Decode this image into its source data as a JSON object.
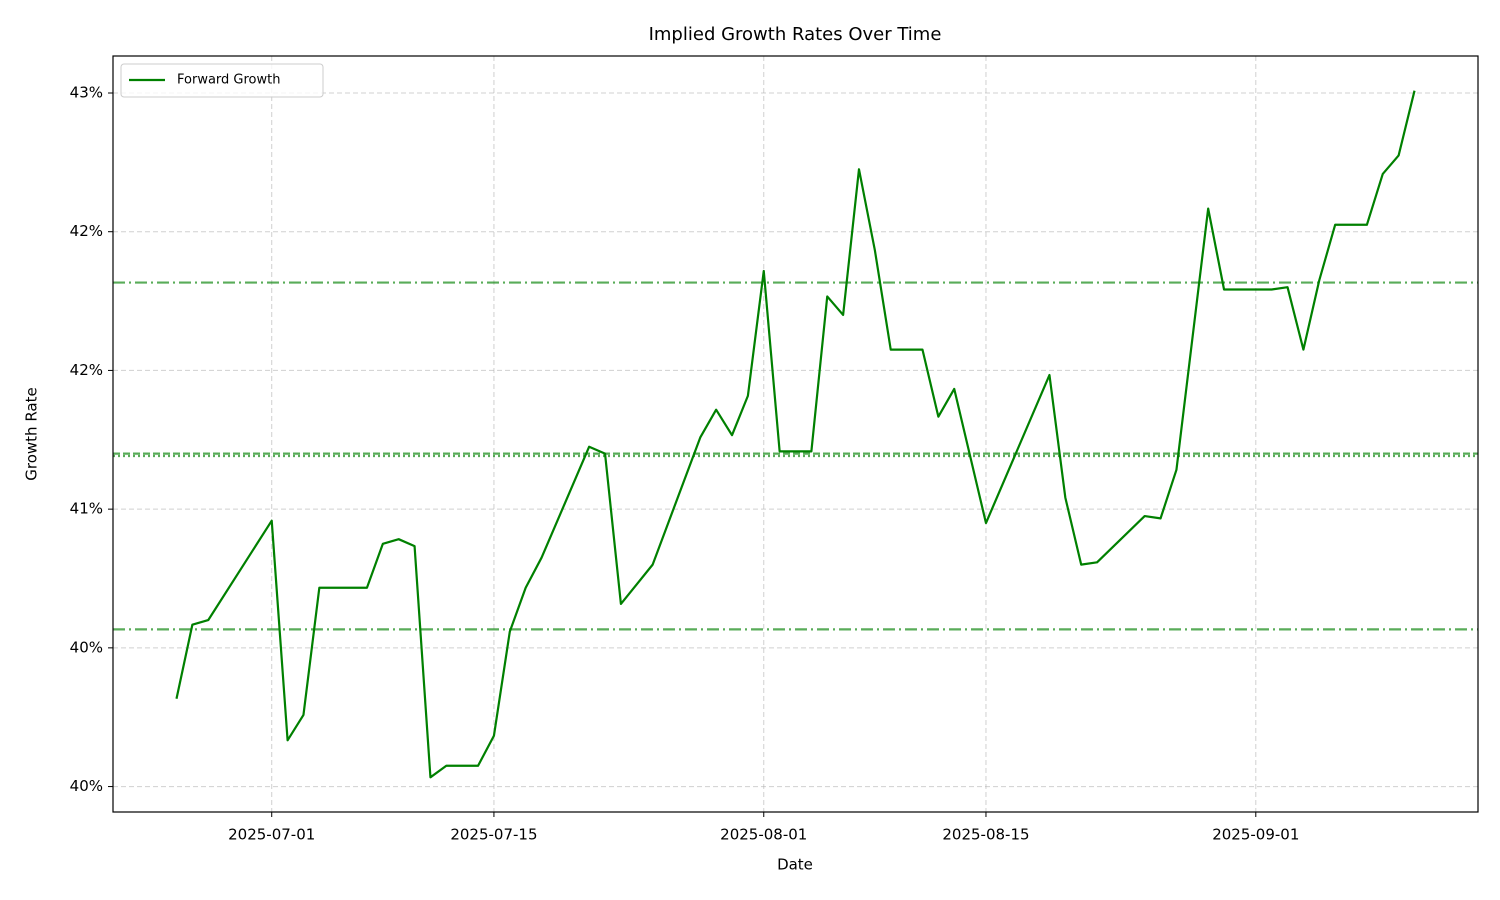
{
  "chart_data": {
    "type": "line",
    "title": "Implied Growth Rates Over Time",
    "x_label": "Date",
    "y_label": "Growth Rate",
    "x": [
      "2025-06-25",
      "2025-06-26",
      "2025-06-27",
      "2025-07-01",
      "2025-07-02",
      "2025-07-03",
      "2025-07-04",
      "2025-07-07",
      "2025-07-08",
      "2025-07-09",
      "2025-07-10",
      "2025-07-11",
      "2025-07-12",
      "2025-07-14",
      "2025-07-15",
      "2025-07-16",
      "2025-07-17",
      "2025-07-18",
      "2025-07-21",
      "2025-07-22",
      "2025-07-23",
      "2025-07-25",
      "2025-07-28",
      "2025-07-29",
      "2025-07-30",
      "2025-07-31",
      "2025-08-01",
      "2025-08-02",
      "2025-08-04",
      "2025-08-05",
      "2025-08-06",
      "2025-08-07",
      "2025-08-08",
      "2025-08-09",
      "2025-08-11",
      "2025-08-12",
      "2025-08-13",
      "2025-08-15",
      "2025-08-19",
      "2025-08-20",
      "2025-08-21",
      "2025-08-22",
      "2025-08-25",
      "2025-08-26",
      "2025-08-27",
      "2025-08-29",
      "2025-08-30",
      "2025-09-02",
      "2025-09-03",
      "2025-09-04",
      "2025-09-05",
      "2025-09-06",
      "2025-09-08",
      "2025-09-09",
      "2025-09-10",
      "2025-09-11"
    ],
    "series": [
      {
        "name": "Forward Growth",
        "color": "#008000",
        "values": [
          40.18,
          40.5,
          40.52,
          40.95,
          40.0,
          40.11,
          40.66,
          40.66,
          40.85,
          40.87,
          40.84,
          39.84,
          39.89,
          39.89,
          40.02,
          40.47,
          40.66,
          40.79,
          41.27,
          41.24,
          40.59,
          40.76,
          41.31,
          41.43,
          41.32,
          41.49,
          42.03,
          41.25,
          41.25,
          41.92,
          41.84,
          42.47,
          42.12,
          41.69,
          41.69,
          41.4,
          41.52,
          40.94,
          41.58,
          41.05,
          40.76,
          40.77,
          40.97,
          40.96,
          41.17,
          42.3,
          41.95,
          41.95,
          41.96,
          41.69,
          41.99,
          42.23,
          42.23,
          42.45,
          42.53,
          42.81
        ]
      }
    ],
    "reference_lines": [
      {
        "value": 41.98,
        "style": "dashdot",
        "color": "#008000"
      },
      {
        "value": 41.24,
        "style": "dashed",
        "color": "#008000"
      },
      {
        "value": 41.23,
        "style": "dotted",
        "color": "#008000"
      },
      {
        "value": 40.48,
        "style": "dashdot",
        "color": "#008000"
      }
    ],
    "xlim": [
      "2025-06-21",
      "2025-09-15"
    ],
    "xticks": [
      "2025-07-01",
      "2025-07-15",
      "2025-08-01",
      "2025-08-15",
      "2025-09-01"
    ],
    "ylim": [
      39.69,
      42.96
    ],
    "yticks": [
      {
        "value": 39.8,
        "label": "40%"
      },
      {
        "value": 40.4,
        "label": "40%"
      },
      {
        "value": 41.0,
        "label": "41%"
      },
      {
        "value": 41.6,
        "label": "42%"
      },
      {
        "value": 42.2,
        "label": "42%"
      },
      {
        "value": 42.8,
        "label": "43%"
      }
    ],
    "grid": true,
    "legend": "upper left"
  }
}
